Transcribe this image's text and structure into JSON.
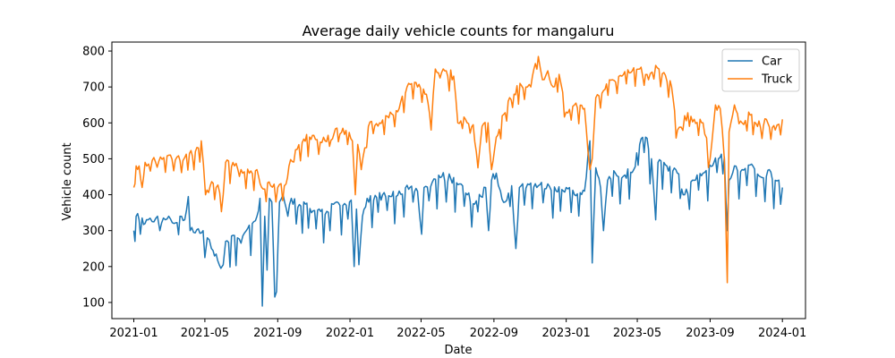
{
  "chart_data": {
    "type": "line",
    "title": "Average daily vehicle counts for mangaluru",
    "xlabel": "Date",
    "ylabel": "Vehicle count",
    "xlim": [
      "2020-11-25",
      "2024-02-09"
    ],
    "ylim": [
      55,
      825
    ],
    "x_ticks": [
      "2021-01",
      "2021-05",
      "2021-09",
      "2022-01",
      "2022-05",
      "2022-09",
      "2023-01",
      "2023-05",
      "2023-09",
      "2024-01"
    ],
    "y_ticks": [
      100,
      200,
      300,
      400,
      500,
      600,
      700,
      800
    ],
    "grid": false,
    "legend_position": "top-right",
    "series": [
      {
        "name": "Car",
        "color": "#1f77b4",
        "points": [
          [
            "2021-01-01",
            300
          ],
          [
            "2021-01-03",
            270
          ],
          [
            "2021-01-05",
            340
          ],
          [
            "2021-01-10",
            330
          ],
          [
            "2021-01-12",
            290
          ],
          [
            "2021-01-15",
            335
          ],
          [
            "2021-01-20",
            320
          ],
          [
            "2021-01-25",
            330
          ],
          [
            "2021-02-01",
            325
          ],
          [
            "2021-02-10",
            340
          ],
          [
            "2021-02-14",
            300
          ],
          [
            "2021-02-20",
            335
          ],
          [
            "2021-03-01",
            340
          ],
          [
            "2021-03-10",
            320
          ],
          [
            "2021-03-20",
            340
          ],
          [
            "2021-03-28",
            330
          ],
          [
            "2021-04-03",
            395
          ],
          [
            "2021-04-06",
            300
          ],
          [
            "2021-04-12",
            295
          ],
          [
            "2021-04-20",
            305
          ],
          [
            "2021-04-28",
            300
          ],
          [
            "2021-05-01",
            225
          ],
          [
            "2021-05-05",
            280
          ],
          [
            "2021-05-12",
            250
          ],
          [
            "2021-05-20",
            235
          ],
          [
            "2021-05-28",
            195
          ],
          [
            "2021-06-01",
            205
          ],
          [
            "2021-06-05",
            270
          ],
          [
            "2021-06-15",
            285
          ],
          [
            "2021-06-25",
            280
          ],
          [
            "2021-07-01",
            265
          ],
          [
            "2021-07-10",
            300
          ],
          [
            "2021-07-20",
            320
          ],
          [
            "2021-07-28",
            340
          ],
          [
            "2021-08-02",
            390
          ],
          [
            "2021-08-06",
            90
          ],
          [
            "2021-08-10",
            340
          ],
          [
            "2021-08-14",
            190
          ],
          [
            "2021-08-18",
            390
          ],
          [
            "2021-08-22",
            380
          ],
          [
            "2021-08-27",
            115
          ],
          [
            "2021-08-30",
            130
          ],
          [
            "2021-09-04",
            380
          ],
          [
            "2021-09-10",
            400
          ],
          [
            "2021-09-18",
            340
          ],
          [
            "2021-09-24",
            390
          ],
          [
            "2021-10-05",
            365
          ],
          [
            "2021-10-15",
            380
          ],
          [
            "2021-10-28",
            350
          ],
          [
            "2021-11-10",
            360
          ],
          [
            "2021-11-20",
            345
          ],
          [
            "2021-12-01",
            375
          ],
          [
            "2021-12-10",
            380
          ],
          [
            "2021-12-20",
            370
          ],
          [
            "2022-01-03",
            385
          ],
          [
            "2022-01-08",
            200
          ],
          [
            "2022-01-12",
            360
          ],
          [
            "2022-01-16",
            205
          ],
          [
            "2022-01-22",
            340
          ],
          [
            "2022-01-30",
            390
          ],
          [
            "2022-02-10",
            385
          ],
          [
            "2022-02-25",
            400
          ],
          [
            "2022-03-10",
            395
          ],
          [
            "2022-03-25",
            410
          ],
          [
            "2022-04-10",
            415
          ],
          [
            "2022-04-25",
            410
          ],
          [
            "2022-05-02",
            290
          ],
          [
            "2022-05-06",
            420
          ],
          [
            "2022-05-20",
            435
          ],
          [
            "2022-06-05",
            450
          ],
          [
            "2022-06-20",
            445
          ],
          [
            "2022-07-05",
            430
          ],
          [
            "2022-07-18",
            400
          ],
          [
            "2022-07-28",
            375
          ],
          [
            "2022-08-10",
            395
          ],
          [
            "2022-08-18",
            420
          ],
          [
            "2022-08-23",
            300
          ],
          [
            "2022-08-28",
            440
          ],
          [
            "2022-09-05",
            460
          ],
          [
            "2022-09-12",
            410
          ],
          [
            "2022-09-20",
            380
          ],
          [
            "2022-10-01",
            425
          ],
          [
            "2022-10-08",
            250
          ],
          [
            "2022-10-14",
            420
          ],
          [
            "2022-10-28",
            430
          ],
          [
            "2022-11-15",
            425
          ],
          [
            "2022-12-01",
            430
          ],
          [
            "2022-12-15",
            410
          ],
          [
            "2023-01-01",
            420
          ],
          [
            "2023-01-15",
            400
          ],
          [
            "2023-02-01",
            410
          ],
          [
            "2023-02-10",
            550
          ],
          [
            "2023-02-14",
            210
          ],
          [
            "2023-02-20",
            475
          ],
          [
            "2023-02-28",
            420
          ],
          [
            "2023-03-05",
            300
          ],
          [
            "2023-03-12",
            440
          ],
          [
            "2023-03-25",
            460
          ],
          [
            "2023-04-10",
            455
          ],
          [
            "2023-04-25",
            470
          ],
          [
            "2023-05-05",
            540
          ],
          [
            "2023-05-15",
            560
          ],
          [
            "2023-05-25",
            500
          ],
          [
            "2023-06-01",
            330
          ],
          [
            "2023-06-05",
            490
          ],
          [
            "2023-06-20",
            480
          ],
          [
            "2023-07-05",
            470
          ],
          [
            "2023-07-20",
            400
          ],
          [
            "2023-08-05",
            440
          ],
          [
            "2023-08-20",
            460
          ],
          [
            "2023-09-05",
            480
          ],
          [
            "2023-09-15",
            500
          ],
          [
            "2023-09-25",
            505
          ],
          [
            "2023-09-30",
            300
          ],
          [
            "2023-10-03",
            440
          ],
          [
            "2023-10-12",
            480
          ],
          [
            "2023-10-25",
            470
          ],
          [
            "2023-11-10",
            485
          ],
          [
            "2023-11-25",
            450
          ],
          [
            "2023-12-10",
            470
          ],
          [
            "2023-12-20",
            440
          ],
          [
            "2024-01-01",
            420
          ]
        ]
      },
      {
        "name": "Truck",
        "color": "#ff7f0e",
        "points": [
          [
            "2021-01-01",
            420
          ],
          [
            "2021-01-03",
            430
          ],
          [
            "2021-01-05",
            480
          ],
          [
            "2021-01-10",
            480
          ],
          [
            "2021-01-15",
            420
          ],
          [
            "2021-01-20",
            490
          ],
          [
            "2021-02-01",
            495
          ],
          [
            "2021-02-15",
            505
          ],
          [
            "2021-03-01",
            510
          ],
          [
            "2021-03-15",
            505
          ],
          [
            "2021-03-25",
            495
          ],
          [
            "2021-04-05",
            515
          ],
          [
            "2021-04-15",
            520
          ],
          [
            "2021-04-25",
            550
          ],
          [
            "2021-05-02",
            400
          ],
          [
            "2021-05-10",
            425
          ],
          [
            "2021-05-20",
            420
          ],
          [
            "2021-06-01",
            400
          ],
          [
            "2021-06-05",
            490
          ],
          [
            "2021-06-20",
            480
          ],
          [
            "2021-07-01",
            470
          ],
          [
            "2021-07-15",
            460
          ],
          [
            "2021-07-28",
            470
          ],
          [
            "2021-08-05",
            420
          ],
          [
            "2021-08-20",
            425
          ],
          [
            "2021-09-01",
            420
          ],
          [
            "2021-09-15",
            430
          ],
          [
            "2021-09-20",
            480
          ],
          [
            "2021-10-01",
            525
          ],
          [
            "2021-10-15",
            555
          ],
          [
            "2021-11-01",
            565
          ],
          [
            "2021-11-20",
            550
          ],
          [
            "2021-12-05",
            570
          ],
          [
            "2021-12-20",
            585
          ],
          [
            "2022-01-05",
            550
          ],
          [
            "2022-01-10",
            400
          ],
          [
            "2022-01-14",
            540
          ],
          [
            "2022-01-20",
            470
          ],
          [
            "2022-02-01",
            590
          ],
          [
            "2022-02-20",
            600
          ],
          [
            "2022-03-10",
            630
          ],
          [
            "2022-03-25",
            640
          ],
          [
            "2022-04-10",
            710
          ],
          [
            "2022-04-25",
            700
          ],
          [
            "2022-05-10",
            680
          ],
          [
            "2022-05-18",
            580
          ],
          [
            "2022-05-25",
            750
          ],
          [
            "2022-06-10",
            745
          ],
          [
            "2022-06-25",
            730
          ],
          [
            "2022-07-02",
            600
          ],
          [
            "2022-07-15",
            610
          ],
          [
            "2022-07-28",
            595
          ],
          [
            "2022-08-05",
            475
          ],
          [
            "2022-08-12",
            590
          ],
          [
            "2022-08-22",
            600
          ],
          [
            "2022-08-28",
            470
          ],
          [
            "2022-09-05",
            560
          ],
          [
            "2022-09-15",
            620
          ],
          [
            "2022-09-25",
            660
          ],
          [
            "2022-10-05",
            680
          ],
          [
            "2022-10-15",
            710
          ],
          [
            "2022-10-25",
            700
          ],
          [
            "2022-11-05",
            730
          ],
          [
            "2022-11-15",
            785
          ],
          [
            "2022-11-22",
            720
          ],
          [
            "2022-12-01",
            745
          ],
          [
            "2022-12-10",
            700
          ],
          [
            "2022-12-20",
            735
          ],
          [
            "2023-01-01",
            630
          ],
          [
            "2023-01-15",
            650
          ],
          [
            "2023-02-01",
            640
          ],
          [
            "2023-02-10",
            470
          ],
          [
            "2023-02-14",
            500
          ],
          [
            "2023-02-20",
            670
          ],
          [
            "2023-03-05",
            690
          ],
          [
            "2023-03-20",
            720
          ],
          [
            "2023-04-05",
            730
          ],
          [
            "2023-04-20",
            740
          ],
          [
            "2023-05-05",
            750
          ],
          [
            "2023-05-20",
            720
          ],
          [
            "2023-06-01",
            760
          ],
          [
            "2023-06-15",
            740
          ],
          [
            "2023-06-28",
            700
          ],
          [
            "2023-07-08",
            580
          ],
          [
            "2023-07-20",
            620
          ],
          [
            "2023-08-05",
            610
          ],
          [
            "2023-08-20",
            600
          ],
          [
            "2023-09-01",
            500
          ],
          [
            "2023-09-10",
            650
          ],
          [
            "2023-09-18",
            640
          ],
          [
            "2023-09-25",
            500
          ],
          [
            "2023-09-30",
            155
          ],
          [
            "2023-10-03",
            575
          ],
          [
            "2023-10-12",
            650
          ],
          [
            "2023-10-25",
            600
          ],
          [
            "2023-11-05",
            630
          ],
          [
            "2023-11-20",
            590
          ],
          [
            "2023-12-05",
            610
          ],
          [
            "2023-12-20",
            580
          ],
          [
            "2024-01-01",
            610
          ]
        ]
      }
    ]
  }
}
